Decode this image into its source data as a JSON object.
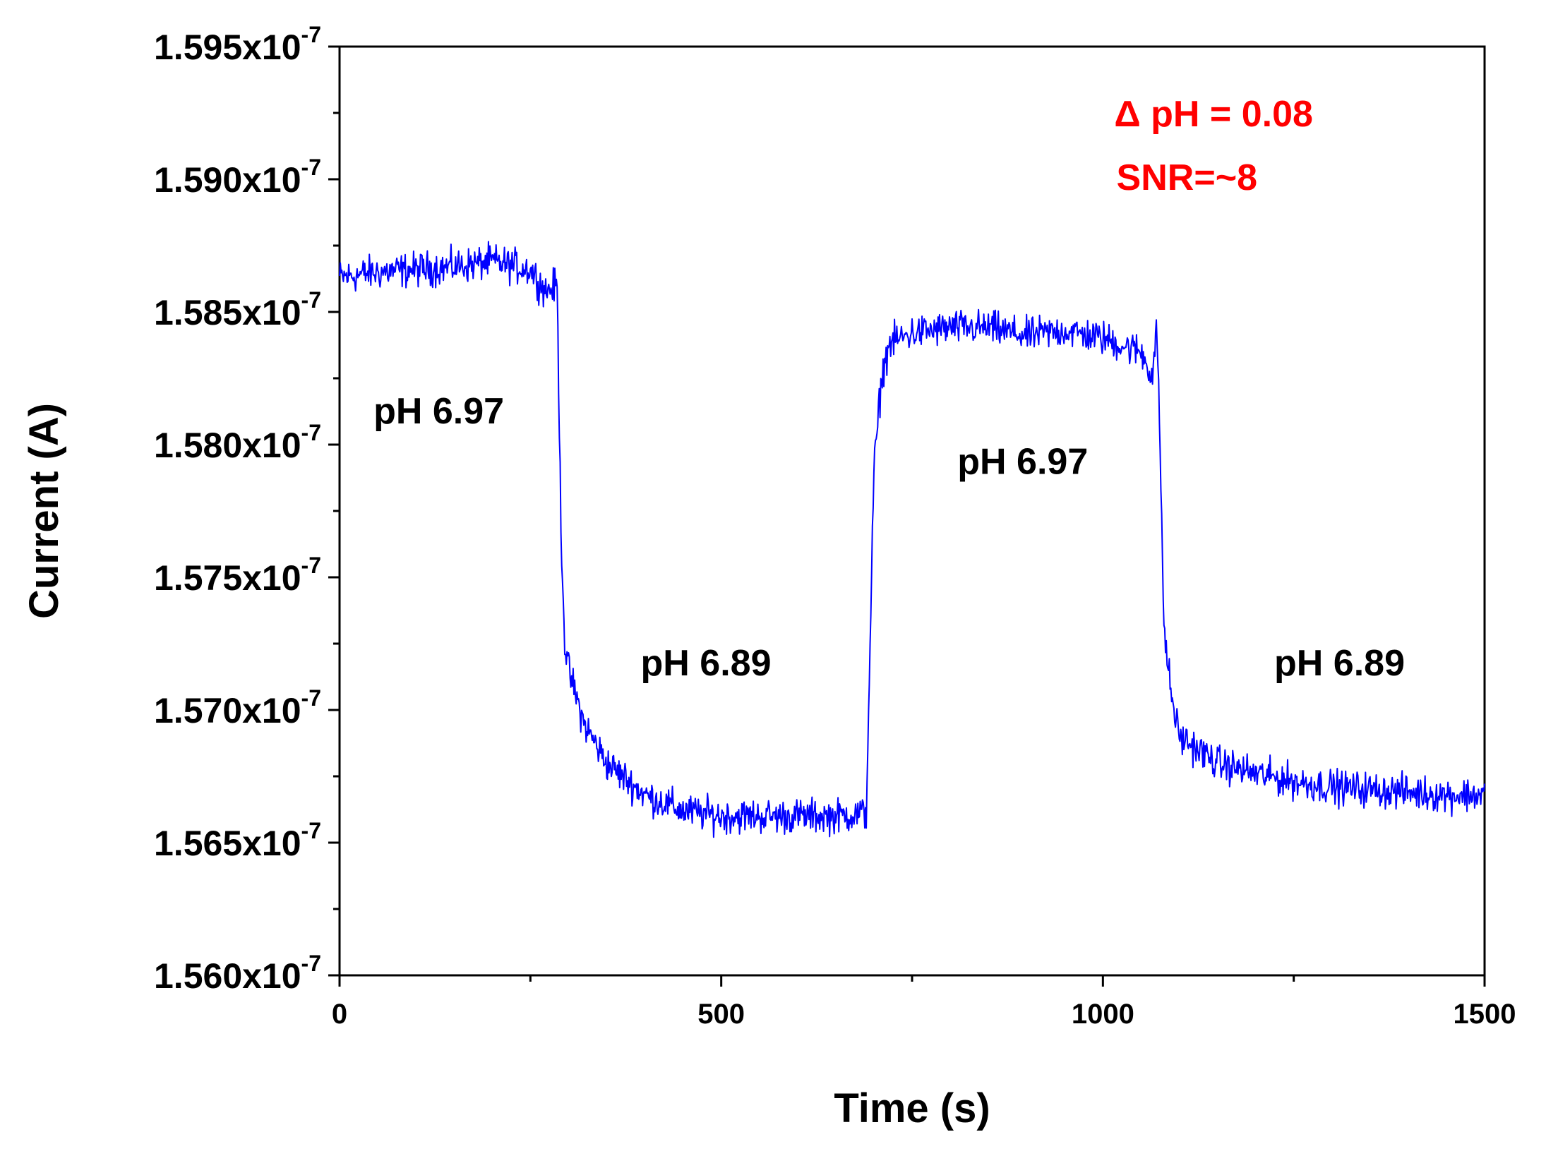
{
  "chart_data": {
    "type": "line",
    "title": "",
    "xlabel": "Time (s)",
    "ylabel": "Current (A)",
    "xlim": [
      0,
      1500
    ],
    "ylim": [
      1.56e-07,
      1.595e-07
    ],
    "x_ticks": [
      0,
      500,
      1000,
      1500
    ],
    "x_tick_labels": [
      "0",
      "500",
      "1000",
      "1500"
    ],
    "y_ticks": [
      1.56e-07,
      1.565e-07,
      1.57e-07,
      1.575e-07,
      1.58e-07,
      1.585e-07,
      1.59e-07,
      1.595e-07
    ],
    "y_tick_labels": [
      {
        "mantissa": "1.560x10",
        "exponent": "-7"
      },
      {
        "mantissa": "1.565x10",
        "exponent": "-7"
      },
      {
        "mantissa": "1.570x10",
        "exponent": "-7"
      },
      {
        "mantissa": "1.575x10",
        "exponent": "-7"
      },
      {
        "mantissa": "1.580x10",
        "exponent": "-7"
      },
      {
        "mantissa": "1.585x10",
        "exponent": "-7"
      },
      {
        "mantissa": "1.590x10",
        "exponent": "-7"
      },
      {
        "mantissa": "1.595x10",
        "exponent": "-7"
      }
    ],
    "grid": false,
    "series": [
      {
        "name": "Current",
        "color": "#0000ff",
        "x": [
          0,
          50,
          100,
          150,
          200,
          250,
          270,
          285,
          290,
          295,
          300,
          320,
          350,
          400,
          450,
          500,
          550,
          600,
          650,
          690,
          700,
          710,
          720,
          750,
          800,
          850,
          900,
          950,
          1000,
          1030,
          1050,
          1065,
          1070,
          1075,
          1080,
          1090,
          1100,
          1150,
          1200,
          1250,
          1300,
          1350,
          1400,
          1450,
          1500
        ],
        "values": [
          1.5863e-07,
          1.5865e-07,
          1.5866e-07,
          1.5867e-07,
          1.5869e-07,
          1.5866e-07,
          1.5858e-07,
          1.586e-07,
          1.577e-07,
          1.5725e-07,
          1.5715e-07,
          1.5695e-07,
          1.568e-07,
          1.5668e-07,
          1.5662e-07,
          1.566e-07,
          1.566e-07,
          1.566e-07,
          1.566e-07,
          1.5661e-07,
          1.579e-07,
          1.5825e-07,
          1.5838e-07,
          1.5842e-07,
          1.5844e-07,
          1.5844e-07,
          1.5841e-07,
          1.5843e-07,
          1.584e-07,
          1.5837e-07,
          1.5835e-07,
          1.5826e-07,
          1.5845e-07,
          1.58e-07,
          1.573e-07,
          1.5705e-07,
          1.569e-07,
          1.568e-07,
          1.5676e-07,
          1.5673e-07,
          1.5671e-07,
          1.567e-07,
          1.5669e-07,
          1.5668e-07,
          1.5668e-07
        ],
        "noise_amplitude": 4e-11
      }
    ],
    "annotations": [
      {
        "text": "pH 6.97",
        "x": 130,
        "y": 1.5808e-07,
        "color": "#000000"
      },
      {
        "text": "pH 6.89",
        "x": 480,
        "y": 1.5713e-07,
        "color": "#000000"
      },
      {
        "text": "pH 6.97",
        "x": 895,
        "y": 1.5789e-07,
        "color": "#000000"
      },
      {
        "text": "pH 6.89",
        "x": 1310,
        "y": 1.5713e-07,
        "color": "#000000"
      },
      {
        "text": "Δ pH = 0.08",
        "x": 1145,
        "y": 1.592e-07,
        "color": "#ff0000"
      },
      {
        "text": "SNR=~8",
        "x": 1110,
        "y": 1.5896e-07,
        "color": "#ff0000"
      }
    ]
  }
}
